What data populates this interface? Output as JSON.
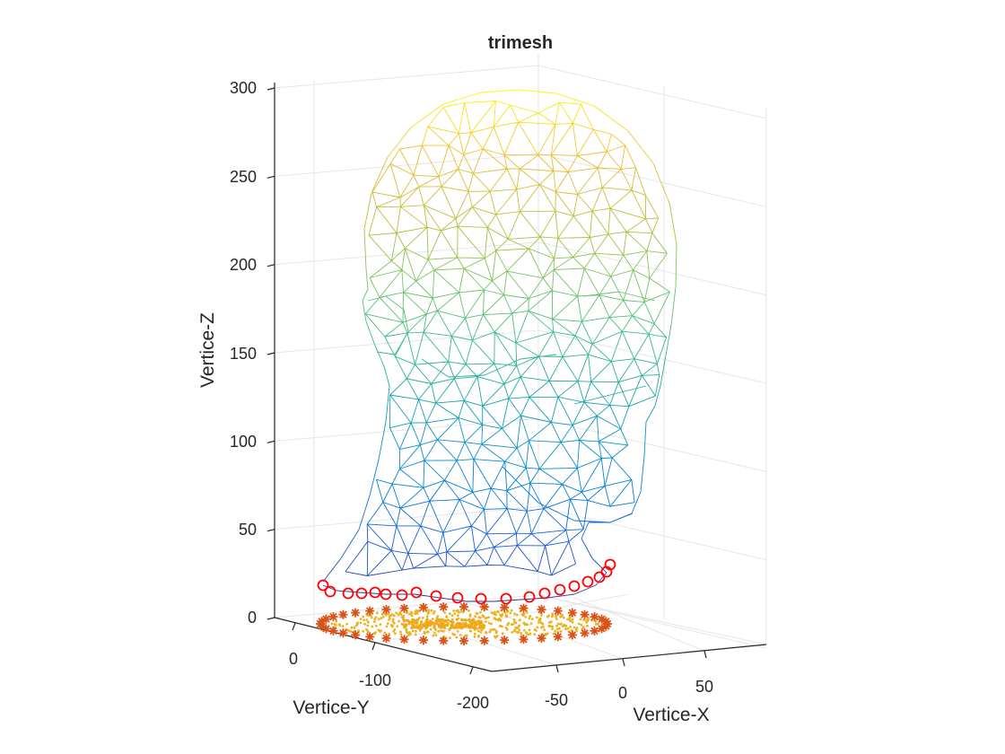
{
  "chart_data": {
    "type": "3d-mesh",
    "title": "trimesh",
    "xlabel": "Vertice-X",
    "ylabel": "Vertice-Y",
    "zlabel": "Vertice-Z",
    "xlim": [
      -100,
      100
    ],
    "ylim": [
      -200,
      50
    ],
    "zlim": [
      0,
      300
    ],
    "xticks": [
      "-50",
      "0",
      "50"
    ],
    "yticks": [
      "0",
      "-100",
      "-200"
    ],
    "zticks": [
      "0",
      "50",
      "100",
      "150",
      "200",
      "250",
      "300"
    ],
    "colormap": "parula",
    "grid": true,
    "series": [
      {
        "kind": "mesh",
        "marker": "none",
        "color": "colormap by Vertice-Z"
      },
      {
        "kind": "boundary-circles",
        "marker": "o",
        "color": "#ff0000",
        "z": 20
      },
      {
        "kind": "projected-boundary",
        "marker": "*",
        "color": "#d95319",
        "z": 0
      },
      {
        "kind": "projected-vertices",
        "marker": ".",
        "color": "#edb120",
        "z": 0
      }
    ]
  }
}
